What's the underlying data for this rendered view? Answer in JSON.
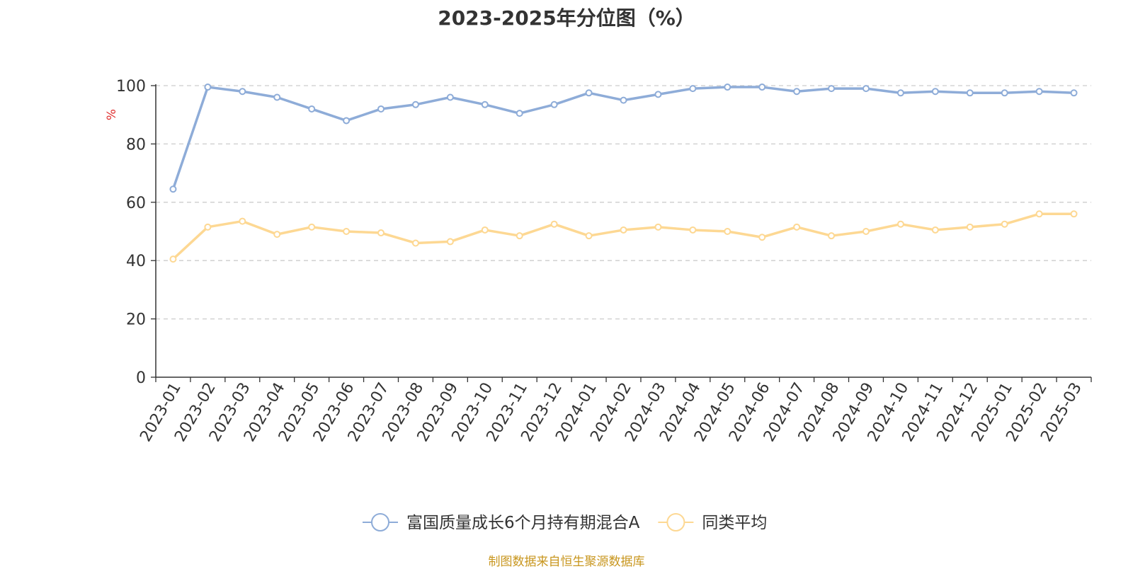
{
  "footer_text": "制图数据来自恒生聚源数据库",
  "chart_data": {
    "type": "line",
    "title": "2023-2025年分位图（%）",
    "ylabel": "%",
    "xlabel": "",
    "ylim": [
      0,
      100
    ],
    "yticks": [
      0,
      20,
      40,
      60,
      80,
      100
    ],
    "grid": true,
    "legend_position": "bottom",
    "categories": [
      "2023-01",
      "2023-02",
      "2023-03",
      "2023-04",
      "2023-05",
      "2023-06",
      "2023-07",
      "2023-08",
      "2023-09",
      "2023-10",
      "2023-11",
      "2023-12",
      "2024-01",
      "2024-02",
      "2024-03",
      "2024-04",
      "2024-05",
      "2024-06",
      "2024-07",
      "2024-08",
      "2024-09",
      "2024-10",
      "2024-11",
      "2024-12",
      "2025-01",
      "2025-02",
      "2025-03"
    ],
    "series": [
      {
        "name": "富国质量成长6个月持有期混合A",
        "color": "#8eacd8",
        "values": [
          64.5,
          99.5,
          98,
          96,
          92,
          88,
          92,
          93.5,
          96,
          93.5,
          90.5,
          93.5,
          97.5,
          95,
          97,
          99,
          99.5,
          99.5,
          98,
          99,
          99,
          97.5,
          98,
          97.5,
          97.5,
          98,
          97.5
        ]
      },
      {
        "name": "同类平均",
        "color": "#fdd893",
        "values": [
          40.5,
          51.5,
          53.5,
          49,
          51.5,
          50,
          49.5,
          46,
          46.5,
          50.5,
          48.5,
          52.5,
          48.5,
          50.5,
          51.5,
          50.5,
          50,
          48,
          51.5,
          48.5,
          50,
          52.5,
          50.5,
          51.5,
          52.5,
          56,
          56
        ]
      }
    ]
  }
}
